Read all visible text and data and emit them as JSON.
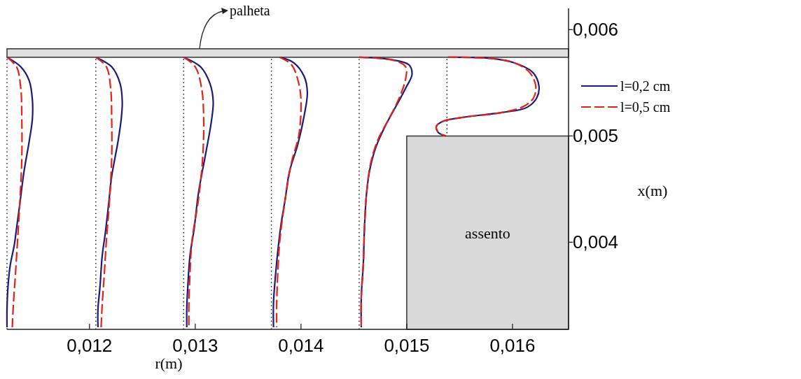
{
  "chart_data": {
    "type": "line",
    "xlabel": "r(m)",
    "ylabel": "x(m)",
    "xlim": [
      0.01122,
      0.01653
    ],
    "ylim": [
      0.00318,
      0.0062
    ],
    "xticks": [
      {
        "value": 0.012,
        "label": "0,012"
      },
      {
        "value": 0.013,
        "label": "0,013"
      },
      {
        "value": 0.014,
        "label": "0,014"
      },
      {
        "value": 0.015,
        "label": "0,015"
      },
      {
        "value": 0.016,
        "label": "0,016"
      }
    ],
    "yticks": [
      {
        "value": 0.004,
        "label": "0,004"
      },
      {
        "value": 0.005,
        "label": "0,005"
      },
      {
        "value": 0.006,
        "label": "0,006"
      }
    ],
    "legend": "right",
    "series": [
      {
        "type": "area",
        "color": "#d9d9d9",
        "x": [
          0.015,
          0.01653
        ],
        "values": [
          0.005,
          0.005
        ]
      },
      {
        "name": "l=0,2 cm",
        "color": "#1c1a78",
        "line_style": "solid",
        "x": [
          0.01122,
          0.01135,
          0.01143,
          0.01146,
          0.01146,
          0.01143,
          0.01138,
          0.01134,
          0.01131,
          0.01129,
          0.01125,
          0.01123,
          0.01122,
          0.01122,
          null,
          0.01206,
          0.01221,
          0.01229,
          0.01231,
          0.0123,
          0.01227,
          0.01221,
          0.01218,
          0.01215,
          0.01212,
          0.0121,
          0.01208,
          0.01208,
          null,
          0.01289,
          0.01305,
          0.01314,
          0.01317,
          0.01315,
          0.0131,
          0.01303,
          0.01299,
          0.01295,
          0.01293,
          0.01292,
          0.01292,
          null,
          0.0138,
          0.01393,
          0.01403,
          0.01406,
          0.01403,
          0.01397,
          0.01389,
          0.01385,
          0.01381,
          0.01378,
          0.01376,
          0.01374,
          0.01374,
          null,
          0.01455,
          0.01484,
          0.01502,
          0.01505,
          0.01499,
          0.01491,
          0.0148,
          0.01471,
          0.01465,
          0.01462,
          0.0146,
          0.01459,
          0.01457,
          0.01457,
          null,
          0.01539,
          0.01579,
          0.01601,
          0.01619,
          0.01625,
          0.01623,
          0.01614,
          0.0159,
          0.01557,
          0.01535,
          0.01528,
          0.0153,
          0.01537
        ],
        "values": [
          0.00574,
          0.00565,
          0.00552,
          0.00534,
          0.00516,
          0.00495,
          0.00466,
          0.00435,
          0.00413,
          0.00398,
          0.00378,
          0.00359,
          0.00337,
          0.0032,
          null,
          0.00574,
          0.00565,
          0.00549,
          0.00532,
          0.00516,
          0.00495,
          0.00462,
          0.00435,
          0.00409,
          0.00387,
          0.00359,
          0.00337,
          0.0032,
          null,
          0.00574,
          0.00565,
          0.00549,
          0.00532,
          0.00512,
          0.00484,
          0.00446,
          0.00413,
          0.00387,
          0.00359,
          0.00337,
          0.0032,
          null,
          0.00574,
          0.00569,
          0.00556,
          0.00541,
          0.00519,
          0.00492,
          0.00466,
          0.0044,
          0.00416,
          0.00391,
          0.0037,
          0.00343,
          0.0032,
          null,
          0.00574,
          0.00572,
          0.00567,
          0.00558,
          0.00545,
          0.0053,
          0.0051,
          0.0049,
          0.00468,
          0.00446,
          0.00413,
          0.00381,
          0.00348,
          0.0032,
          null,
          0.00574,
          0.00573,
          0.00569,
          0.0056,
          0.00547,
          0.00536,
          0.00527,
          0.00522,
          0.00518,
          0.00514,
          0.00509,
          0.00503,
          0.005
        ]
      },
      {
        "name": "l=0,5 cm",
        "color": "#e2231a",
        "line_style": "dashed",
        "x": [
          0.01122,
          0.01131,
          0.01135,
          0.01136,
          0.01136,
          0.01134,
          0.01132,
          0.0113,
          0.01128,
          0.01127,
          null,
          0.01206,
          0.01216,
          0.0122,
          0.01221,
          0.01221,
          0.01219,
          0.01216,
          0.01214,
          0.01212,
          0.01211,
          null,
          0.01289,
          0.013,
          0.01306,
          0.01308,
          0.01307,
          0.01303,
          0.01297,
          0.01295,
          0.01294,
          0.01294,
          null,
          0.0138,
          0.01391,
          0.01398,
          0.014,
          0.01398,
          0.01391,
          0.01385,
          0.0138,
          0.01378,
          0.01377,
          0.01377,
          null,
          0.01455,
          0.01488,
          0.01499,
          0.01499,
          0.01493,
          0.01482,
          0.01473,
          0.01466,
          0.01462,
          0.0146,
          0.01459,
          0.01457,
          0.01457,
          null,
          0.01539,
          0.01579,
          0.01601,
          0.01616,
          0.01622,
          0.0162,
          0.01611,
          0.0159,
          0.01557,
          0.01535,
          0.01528,
          0.0153,
          0.01537
        ],
        "values": [
          0.00574,
          0.00565,
          0.00545,
          0.00516,
          0.00479,
          0.00435,
          0.00402,
          0.0037,
          0.00341,
          0.0032,
          null,
          0.00574,
          0.00565,
          0.00545,
          0.00516,
          0.00479,
          0.0044,
          0.00402,
          0.0037,
          0.00341,
          0.0032,
          null,
          0.00574,
          0.00565,
          0.00545,
          0.00516,
          0.00479,
          0.0044,
          0.00402,
          0.0037,
          0.00341,
          0.0032,
          null,
          0.00574,
          0.00567,
          0.00549,
          0.00532,
          0.00501,
          0.00475,
          0.0044,
          0.00402,
          0.0037,
          0.00341,
          0.0032,
          null,
          0.00574,
          0.00571,
          0.00565,
          0.00554,
          0.00536,
          0.00514,
          0.00497,
          0.00475,
          0.00446,
          0.00413,
          0.00381,
          0.00348,
          0.0032,
          null,
          0.00574,
          0.00573,
          0.00569,
          0.0056,
          0.00547,
          0.00536,
          0.00528,
          0.00522,
          0.00518,
          0.00514,
          0.00509,
          0.00503,
          0.005
        ]
      }
    ],
    "ref_lines": [
      {
        "axis": "x",
        "value": 0.01122,
        "line_style": "dotted",
        "color": "#000000"
      },
      {
        "axis": "x",
        "value": 0.01206,
        "line_style": "dotted",
        "color": "#000000"
      },
      {
        "axis": "x",
        "value": 0.01289,
        "line_style": "dotted",
        "color": "#000000"
      },
      {
        "axis": "x",
        "value": 0.01372,
        "line_style": "dotted",
        "color": "#000000"
      },
      {
        "axis": "x",
        "value": 0.01455,
        "line_style": "dotted",
        "color": "#000000"
      },
      {
        "axis": "x",
        "value": 0.01538,
        "line_style": "dotted",
        "color": "#000000"
      }
    ],
    "bands": [
      {
        "axis": "y",
        "from": 0.00574,
        "to": 0.00582,
        "label": "palheta",
        "color": "#e0e0e0"
      }
    ],
    "annotations": [
      "assento"
    ]
  }
}
